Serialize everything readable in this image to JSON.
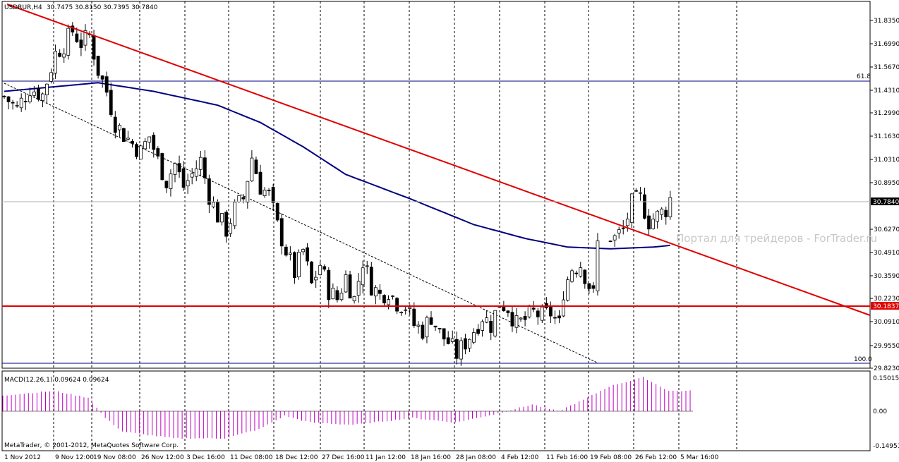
{
  "header": {
    "symbol_label": "USDRUR,H4",
    "ohlc_label": "30.7475 30.8150 30.7395 30.7840"
  },
  "macd": {
    "label": "MACD(12,26,1) 0.09624 0.09624",
    "ticks": [
      "0.15015",
      "0.00",
      "-0.14951"
    ]
  },
  "footer": {
    "copyright": "MetaTrader, © 2001-2012, MetaQuotes Software Corp."
  },
  "watermark": "Портал для трейдеров - ForTrader.ru",
  "levels": {
    "fib_618_label": "61.8",
    "fib_100_label": "100.0",
    "support_label": "30.1837",
    "current_price_label": "30.7840"
  },
  "colors": {
    "trendline": "#e00000",
    "ma": "#000080",
    "fib": "#000080",
    "support": "#e00000",
    "macd_bars": "#c000c0",
    "candles": "#000000"
  },
  "chart_data": {
    "type": "candlestick",
    "symbol": "USDRUR",
    "timeframe": "H4",
    "y_ticks": [
      "31.8350",
      "31.6990",
      "31.5670",
      "31.4310",
      "31.2990",
      "31.1630",
      "31.0310",
      "30.8950",
      "30.6270",
      "30.4910",
      "30.3590",
      "30.2230",
      "30.0910",
      "29.9550",
      "29.8230"
    ],
    "x_ticks": [
      "1 Nov 2012",
      "9 Nov 12:00",
      "19 Nov 08:00",
      "26 Nov 12:00",
      "3 Dec 16:00",
      "11 Dec 08:00",
      "18 Dec 12:00",
      "27 Dec 16:00",
      "11 Jan 12:00",
      "18 Jan 16:00",
      "28 Jan 08:00",
      "4 Feb 12:00",
      "11 Feb 16:00",
      "19 Feb 08:00",
      "26 Feb 12:00",
      "5 Mar 16:00"
    ],
    "ylim": [
      29.8,
      31.92
    ],
    "close_path": [
      [
        0,
        31.37
      ],
      [
        3,
        31.3
      ],
      [
        6,
        31.42
      ],
      [
        9,
        31.38
      ],
      [
        12,
        31.62
      ],
      [
        14,
        31.67
      ],
      [
        16,
        31.75
      ],
      [
        18,
        31.68
      ],
      [
        20,
        31.72
      ],
      [
        22,
        31.52
      ],
      [
        24,
        31.4
      ],
      [
        26,
        31.22
      ],
      [
        28,
        31.15
      ],
      [
        30,
        31.1
      ],
      [
        32,
        31.05
      ],
      [
        34,
        31.14
      ],
      [
        36,
        31.0
      ],
      [
        38,
        30.88
      ],
      [
        40,
        30.98
      ],
      [
        42,
        30.85
      ],
      [
        44,
        30.92
      ],
      [
        46,
        31.0
      ],
      [
        48,
        30.8
      ],
      [
        50,
        30.68
      ],
      [
        52,
        30.6
      ],
      [
        54,
        30.72
      ],
      [
        56,
        30.78
      ],
      [
        58,
        31.02
      ],
      [
        60,
        30.85
      ],
      [
        62,
        30.8
      ],
      [
        64,
        30.62
      ],
      [
        66,
        30.48
      ],
      [
        68,
        30.35
      ],
      [
        70,
        30.48
      ],
      [
        72,
        30.28
      ],
      [
        74,
        30.4
      ],
      [
        76,
        30.25
      ],
      [
        78,
        30.2
      ],
      [
        80,
        30.33
      ],
      [
        82,
        30.2
      ],
      [
        84,
        30.42
      ],
      [
        86,
        30.28
      ],
      [
        88,
        30.22
      ],
      [
        90,
        30.25
      ],
      [
        92,
        30.18
      ],
      [
        94,
        30.16
      ],
      [
        96,
        30.05
      ],
      [
        98,
        30.02
      ],
      [
        100,
        30.1
      ],
      [
        102,
        30.0
      ],
      [
        104,
        29.95
      ],
      [
        106,
        29.88
      ],
      [
        108,
        29.95
      ],
      [
        110,
        30.02
      ],
      [
        112,
        30.1
      ],
      [
        114,
        30.05
      ],
      [
        116,
        30.18
      ],
      [
        118,
        30.15
      ],
      [
        120,
        30.05
      ],
      [
        122,
        30.08
      ],
      [
        124,
        30.12
      ],
      [
        126,
        30.1
      ],
      [
        128,
        30.12
      ],
      [
        130,
        30.05
      ],
      [
        131,
        30.25
      ],
      [
        133,
        30.38
      ],
      [
        135,
        30.4
      ],
      [
        137,
        30.28
      ],
      [
        138,
        30.22
      ],
      [
        139,
        30.52
      ],
      [
        141,
        30.58
      ],
      [
        143,
        30.55
      ],
      [
        145,
        30.6
      ],
      [
        147,
        30.75
      ],
      [
        149,
        30.78
      ],
      [
        151,
        30.65
      ],
      [
        153,
        30.68
      ],
      [
        155,
        30.72
      ],
      [
        156,
        30.78
      ]
    ],
    "ma": [
      [
        0,
        31.4
      ],
      [
        22,
        31.45
      ],
      [
        35,
        31.4
      ],
      [
        50,
        31.32
      ],
      [
        60,
        31.22
      ],
      [
        70,
        31.08
      ],
      [
        80,
        30.92
      ],
      [
        95,
        30.78
      ],
      [
        110,
        30.63
      ],
      [
        122,
        30.55
      ],
      [
        132,
        30.5
      ],
      [
        142,
        30.49
      ],
      [
        152,
        30.5
      ],
      [
        156,
        30.51
      ]
    ],
    "macd_hist": [
      [
        0,
        0.07
      ],
      [
        12,
        0.09
      ],
      [
        20,
        0.06
      ],
      [
        24,
        -0.03
      ],
      [
        28,
        -0.09
      ],
      [
        40,
        -0.12
      ],
      [
        52,
        -0.12
      ],
      [
        60,
        -0.08
      ],
      [
        66,
        -0.02
      ],
      [
        72,
        -0.05
      ],
      [
        82,
        -0.06
      ],
      [
        96,
        -0.03
      ],
      [
        106,
        -0.05
      ],
      [
        116,
        -0.01
      ],
      [
        124,
        0.03
      ],
      [
        130,
        0.0
      ],
      [
        136,
        0.05
      ],
      [
        142,
        0.11
      ],
      [
        150,
        0.15
      ],
      [
        156,
        0.09
      ]
    ],
    "support_level": 30.1837,
    "fib_levels": [
      {
        "label": "61.8",
        "value": 31.48
      },
      {
        "label": "100.0",
        "value": 29.86
      }
    ],
    "last_price": 30.784
  }
}
